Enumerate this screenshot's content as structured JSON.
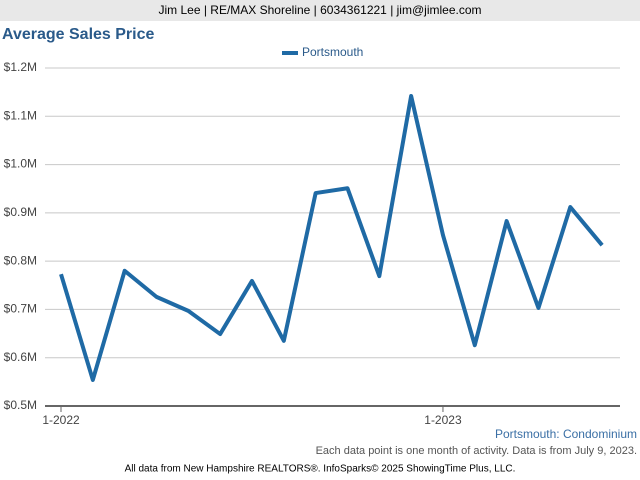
{
  "header": "Jim Lee | RE/MAX Shoreline | 6034361221 | jim@jimlee.com",
  "chart_data": {
    "type": "line",
    "title": "Average Sales Price",
    "categories": [
      "1-2022",
      null,
      null,
      null,
      null,
      null,
      null,
      null,
      null,
      null,
      null,
      null,
      "1-2023",
      null,
      null,
      null,
      null,
      null
    ],
    "series": [
      {
        "name": "Portsmouth",
        "color": "#1f6aa5",
        "values": [
          773000,
          554000,
          780000,
          726000,
          697000,
          649000,
          759000,
          635000,
          941000,
          951000,
          769000,
          1142000,
          854000,
          626000,
          883000,
          703000,
          912000,
          833000
        ]
      }
    ],
    "ylim": [
      500000,
      1200000
    ],
    "yticks": [
      {
        "value": 500000,
        "label": "$0.5M"
      },
      {
        "value": 600000,
        "label": "$0.6M"
      },
      {
        "value": 700000,
        "label": "$0.7M"
      },
      {
        "value": 800000,
        "label": "$0.8M"
      },
      {
        "value": 900000,
        "label": "$0.9M"
      },
      {
        "value": 1000000,
        "label": "$1.0M"
      },
      {
        "value": 1100000,
        "label": "$1.1M"
      },
      {
        "value": 1200000,
        "label": "$1.2M"
      }
    ],
    "grid": true,
    "legend": "top"
  },
  "footer": {
    "caption": "Portsmouth: Condominium",
    "note": "Each data point is one month of activity. Data is from July 9, 2023.",
    "credit": "All data from New Hampshire REALTORS®. InfoSparks© 2025 ShowingTime Plus, LLC."
  }
}
